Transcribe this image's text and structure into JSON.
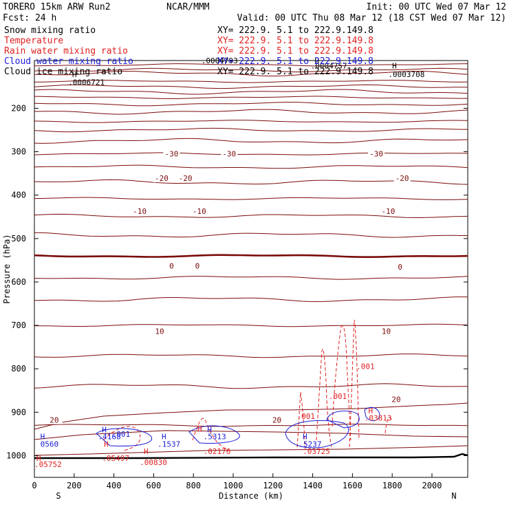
{
  "header": {
    "model": "TORERO  15km ARW   Run2",
    "org": "NCAR/MMM",
    "init": "Init: 00 UTC Wed 07 Mar 12",
    "fcst": "Fcst:    24 h",
    "valid": "Valid: 00 UTC Thu 08 Mar 12 (18 CST Wed 07 Mar 12)"
  },
  "colors": {
    "dark_red": "#7a0a0a",
    "red": "#e02020",
    "blue": "#1a1ad8",
    "black": "#000000"
  },
  "chart_data": {
    "type": "cross-section",
    "title": "TORERO 15km ARW Run2 vertical cross section",
    "xlabel": "Distance (km)",
    "ylabel": "Pressure (hPa)",
    "xlim": [
      0,
      2180
    ],
    "ylim": [
      1050,
      90
    ],
    "xticks": [
      0,
      200,
      400,
      600,
      800,
      1000,
      1200,
      1400,
      1600,
      1800,
      2000
    ],
    "yticks": [
      200,
      300,
      400,
      500,
      600,
      700,
      800,
      900,
      1000
    ],
    "x_endpoints": {
      "left": "S",
      "right": "N"
    },
    "legend": [
      {
        "name": "Snow mixing ratio",
        "color": "black",
        "xy": "XY= 222.9.  5.1 to 222.9.149.8"
      },
      {
        "name": "Temperature",
        "color": "red",
        "xy": "XY= 222.9.  5.1 to 222.9.149.8"
      },
      {
        "name": "Rain water mixing ratio",
        "color": "red",
        "xy": "XY= 222.9.  5.1 to 222.9.149.8"
      },
      {
        "name": "Cloud water mixing ratio",
        "color": "blue",
        "xy": "XY= 222.9.  5.1 to 222.9.149.8"
      },
      {
        "name": "Cloud ice mixing ratio",
        "color": "black",
        "xy": "XY= 222.9.  5.1 to 222.9.149.8"
      }
    ],
    "isotherm_labels": [
      {
        "text": "-30",
        "x": 690,
        "p": 305
      },
      {
        "text": "-30",
        "x": 980,
        "p": 305
      },
      {
        "text": "-30",
        "x": 1720,
        "p": 305
      },
      {
        "text": "-20",
        "x": 640,
        "p": 361
      },
      {
        "text": "-20",
        "x": 760,
        "p": 361
      },
      {
        "text": "-20",
        "x": 1850,
        "p": 361
      },
      {
        "text": "-10",
        "x": 530,
        "p": 437
      },
      {
        "text": "-10",
        "x": 830,
        "p": 437
      },
      {
        "text": "-10",
        "x": 1780,
        "p": 437
      },
      {
        "text": "0",
        "x": 690,
        "p": 563
      },
      {
        "text": "0",
        "x": 820,
        "p": 563
      },
      {
        "text": "0",
        "x": 1840,
        "p": 565
      },
      {
        "text": "10",
        "x": 630,
        "p": 713
      },
      {
        "text": "10",
        "x": 1770,
        "p": 713
      },
      {
        "text": "20",
        "x": 100,
        "p": 918
      },
      {
        "text": "20",
        "x": 1220,
        "p": 918
      },
      {
        "text": "20",
        "x": 1820,
        "p": 870
      }
    ],
    "annotations": [
      {
        "text": ".0004793",
        "x": 840,
        "p": 90,
        "color": "black"
      },
      {
        "text": "H",
        "x": 1410,
        "p": 90,
        "color": "black"
      },
      {
        "text": ".0004757",
        "x": 1390,
        "p": 102,
        "color": "black"
      },
      {
        "text": "H",
        "x": 1800,
        "p": 102,
        "color": "black"
      },
      {
        "text": ".0003708",
        "x": 1780,
        "p": 122,
        "color": "black"
      },
      {
        "text": "H",
        "x": 190,
        "p": 122,
        "color": "black"
      },
      {
        "text": ".0006721",
        "x": 170,
        "p": 140,
        "color": "black"
      },
      {
        "text": ".001",
        "x": 1620,
        "p": 794,
        "color": "red"
      },
      {
        "text": ".001",
        "x": 1480,
        "p": 863,
        "color": "red"
      },
      {
        "text": ".001",
        "x": 1320,
        "p": 909,
        "color": "red"
      },
      {
        "text": ".001",
        "x": 390,
        "p": 950,
        "color": "blue"
      },
      {
        "text": "H",
        "x": 1680,
        "p": 896,
        "color": "red"
      },
      {
        "text": ".03813",
        "x": 1660,
        "p": 913,
        "color": "red"
      },
      {
        "text": "H",
        "x": 340,
        "p": 940,
        "color": "blue"
      },
      {
        "text": ".4168",
        "x": 320,
        "p": 956,
        "color": "blue"
      },
      {
        "text": "H",
        "x": 30,
        "p": 956,
        "color": "blue"
      },
      {
        "text": "0560",
        "x": 30,
        "p": 973,
        "color": "blue"
      },
      {
        "text": "H",
        "x": 640,
        "p": 956,
        "color": "blue"
      },
      {
        "text": ".1537",
        "x": 620,
        "p": 973,
        "color": "blue"
      },
      {
        "text": "H",
        "x": 870,
        "p": 940,
        "color": "blue"
      },
      {
        "text": ".5313",
        "x": 850,
        "p": 956,
        "color": "blue"
      },
      {
        "text": "H",
        "x": 1350,
        "p": 956,
        "color": "blue"
      },
      {
        "text": ".5237",
        "x": 1330,
        "p": 973,
        "color": "blue"
      },
      {
        "text": "H",
        "x": 820,
        "p": 938,
        "color": "red"
      },
      {
        "text": ".02176",
        "x": 850,
        "p": 990,
        "color": "red"
      },
      {
        "text": "H",
        "x": 350,
        "p": 973,
        "color": "red"
      },
      {
        "text": ".05497",
        "x": 340,
        "p": 1006,
        "color": "red"
      },
      {
        "text": "H",
        "x": 550,
        "p": 990,
        "color": "red"
      },
      {
        "text": ".00830",
        "x": 530,
        "p": 1015,
        "color": "red"
      },
      {
        "text": "H",
        "x": 10,
        "p": 1006,
        "color": "red"
      },
      {
        "text": ".05752",
        "x": 0,
        "p": 1020,
        "color": "red"
      },
      {
        "text": ".03725",
        "x": 1350,
        "p": 990,
        "color": "red"
      }
    ]
  }
}
